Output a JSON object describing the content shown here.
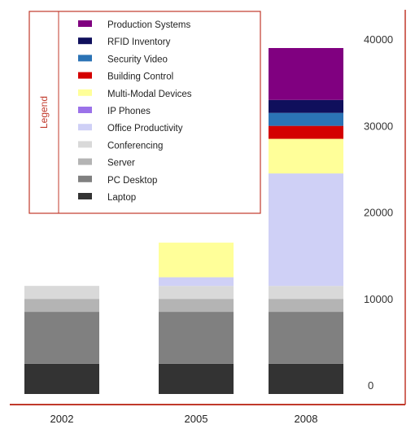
{
  "chart_data": {
    "type": "bar",
    "stacked": true,
    "categories": [
      "2002",
      "2005",
      "2008"
    ],
    "ylim": [
      0,
      40000
    ],
    "yticks": [
      0,
      10000,
      20000,
      30000,
      40000
    ],
    "grid": false,
    "legend_title": "Legend",
    "legend_position": "top-left",
    "series": [
      {
        "name": "Laptop",
        "color": "#333333",
        "values": [
          3500,
          3500,
          3500
        ]
      },
      {
        "name": "PC Desktop",
        "color": "#808080",
        "values": [
          6000,
          6000,
          6000
        ]
      },
      {
        "name": "Server",
        "color": "#b4b4b4",
        "values": [
          1500,
          1500,
          1500
        ]
      },
      {
        "name": "Conferencing",
        "color": "#d9d9d9",
        "values": [
          1500,
          1500,
          1500
        ]
      },
      {
        "name": "Office Productivity",
        "color": "#cfd0f6",
        "values": [
          0,
          1000,
          13000
        ]
      },
      {
        "name": "IP Phones",
        "color": "#9b72e9",
        "values": [
          0,
          0,
          0
        ]
      },
      {
        "name": "Multi-Modal Devices",
        "color": "#ffff99",
        "values": [
          0,
          4000,
          4000
        ]
      },
      {
        "name": "Building Control",
        "color": "#d40000",
        "values": [
          0,
          0,
          1500
        ]
      },
      {
        "name": "Security Video",
        "color": "#2b73b5",
        "values": [
          0,
          0,
          1500
        ]
      },
      {
        "name": "RFID Inventory",
        "color": "#0f0f5c",
        "values": [
          0,
          0,
          1500
        ]
      },
      {
        "name": "Production Systems",
        "color": "#800080",
        "values": [
          0,
          0,
          6000
        ]
      }
    ]
  },
  "colors": {
    "axis": "#c0392b",
    "legend_border": "#c0392b"
  }
}
